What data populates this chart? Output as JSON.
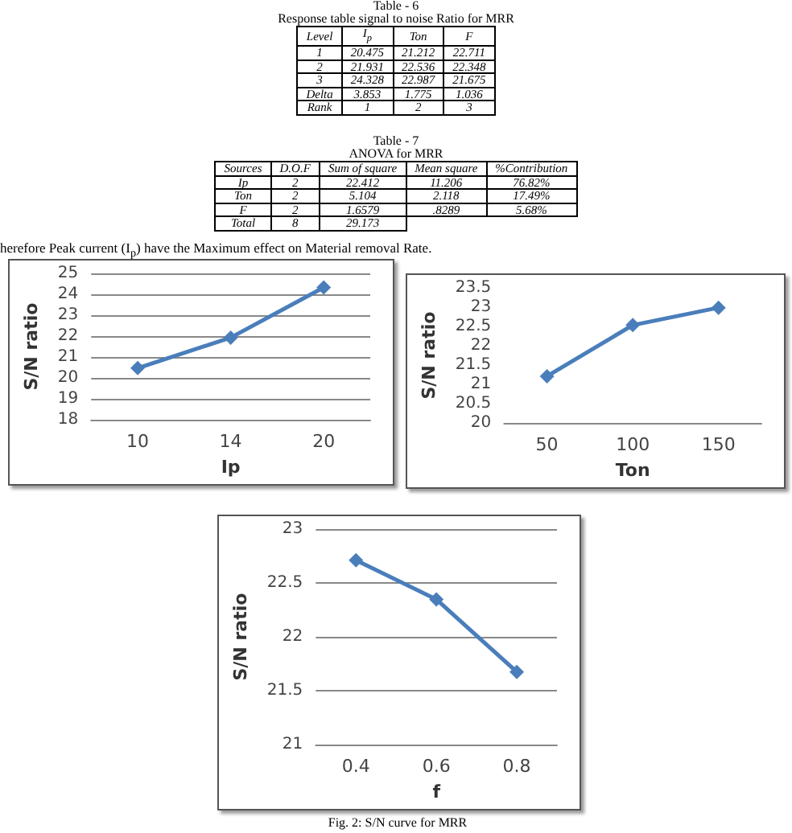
{
  "chart_data": [
    {
      "type": "other",
      "title": "Table - 6",
      "subtitle": "Response table signal to noise Ratio for MRR",
      "categories": [
        "Level",
        "I$_{p}$",
        "Ton",
        "F"
      ],
      "annotations": [
        "1",
        "20.475",
        "21.212",
        "22.711",
        "2",
        "21.931",
        "22.536",
        "22.348",
        "3",
        "24.328",
        "22.987",
        "21.675",
        "Delta",
        "3.853",
        "1.775",
        "1.036",
        "Rank",
        "1",
        "2",
        "3"
      ]
    },
    {
      "type": "other",
      "title": "Table - 7",
      "subtitle": "ANOVA for MRR",
      "categories": [
        "Sources",
        "D.O.F",
        "Sum of square",
        "Mean square",
        "%Contribution"
      ],
      "annotations": [
        "Ip",
        "2",
        "22.412",
        "11.206",
        "76.82%",
        "Ton",
        "2",
        "5.104",
        "2.118",
        "17.49%",
        "F",
        "2",
        "1.6579",
        ".8289",
        "5.68%",
        "Total",
        "8",
        "29.173"
      ]
    },
    {
      "type": "other",
      "annotations": [
        "herefore Peak current (I$_{p}$) have the Maximum effect on Material removal Rate."
      ]
    },
    {
      "type": "line",
      "categories": [
        "10",
        "14",
        "20"
      ],
      "values": [
        20.475,
        21.931,
        24.328
      ],
      "color": "#4a7ebb",
      "ylim": [
        18,
        25
      ],
      "yticks": [
        18,
        19,
        20,
        21,
        22,
        23,
        24,
        25
      ],
      "grid": "y",
      "marker": "diamond",
      "xlabel": "Ip",
      "ylabel": "S/N ratio"
    },
    {
      "type": "line",
      "categories": [
        "50",
        "100",
        "150"
      ],
      "values": [
        21.212,
        22.536,
        22.987
      ],
      "color": "#4a7ebb",
      "ylim": [
        20,
        23.5
      ],
      "yticks": [
        20,
        20.5,
        21,
        21.5,
        22,
        22.5,
        23,
        23.5
      ],
      "grid": false,
      "marker": "diamond",
      "xlabel": "Ton",
      "ylabel": "S/N ratio"
    },
    {
      "type": "line",
      "categories": [
        "0.4",
        "0.6",
        "0.8"
      ],
      "values": [
        22.711,
        22.348,
        21.675
      ],
      "color": "#4a7ebb",
      "ylim": [
        21,
        23
      ],
      "yticks": [
        21,
        21.5,
        22,
        22.5,
        23
      ],
      "grid": "y",
      "marker": "diamond",
      "xlabel": "f",
      "ylabel": "S/N ratio",
      "annotations": [
        "Fig. 2: S/N curve for MRR"
      ]
    }
  ]
}
